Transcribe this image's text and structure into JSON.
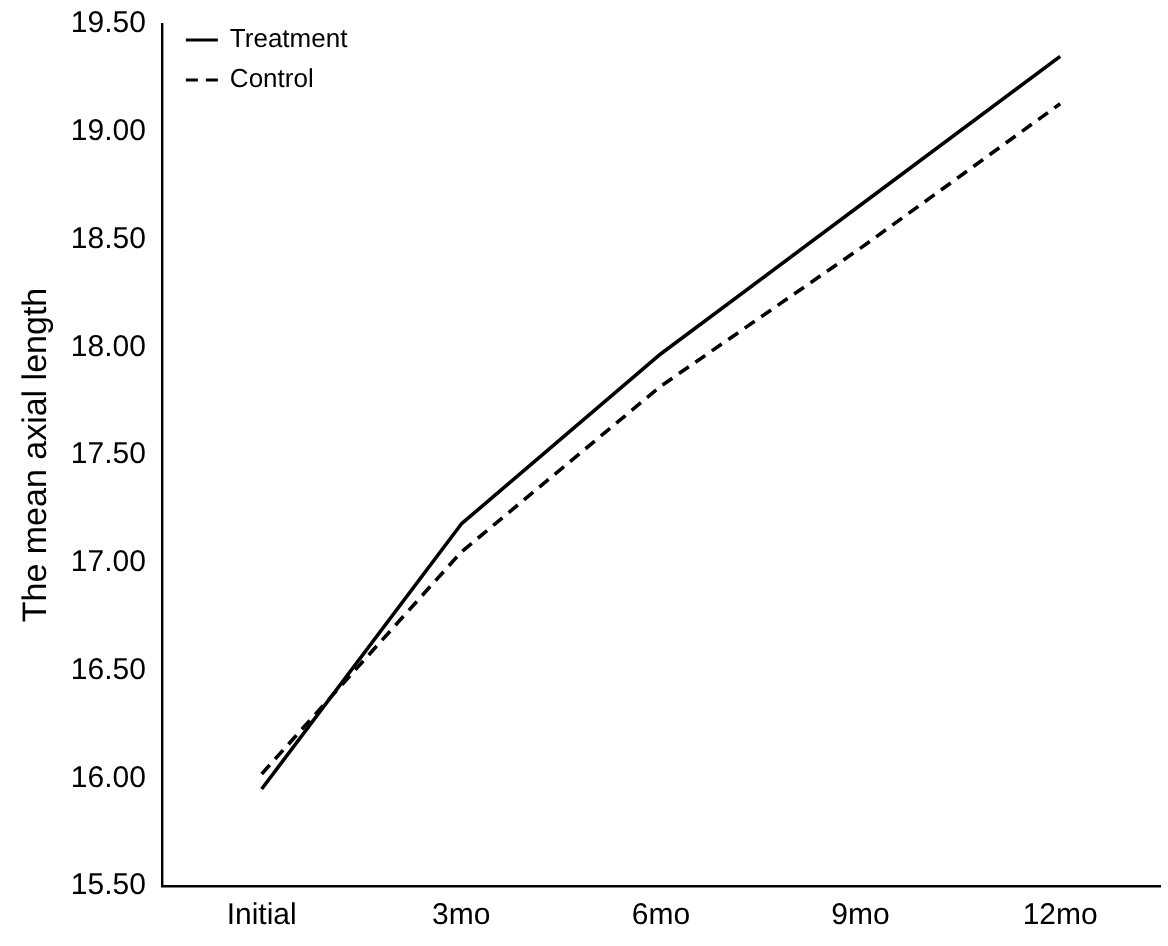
{
  "chart_data": {
    "type": "line",
    "ylabel": "The mean axial length",
    "categories": [
      "Initial",
      "3mo",
      "6mo",
      "9mo",
      "12mo"
    ],
    "series": [
      {
        "name": "Treatment",
        "color": "#000000",
        "line_style": "solid",
        "values": [
          15.95,
          17.18,
          17.97,
          18.66,
          19.35
        ]
      },
      {
        "name": "Control",
        "color": "#000000",
        "line_style": "dashed",
        "values": [
          16.02,
          17.05,
          17.82,
          18.46,
          19.13
        ]
      }
    ],
    "ylim": [
      15.5,
      19.5
    ],
    "yticks": [
      {
        "value": 15.5,
        "label": "15.50"
      },
      {
        "value": 16,
        "label": "16.00"
      },
      {
        "value": 16.5,
        "label": "16.50"
      },
      {
        "value": 17,
        "label": "17.00"
      },
      {
        "value": 17.5,
        "label": "17.50"
      },
      {
        "value": 18,
        "label": "18.00"
      },
      {
        "value": 18.5,
        "label": "18.50"
      },
      {
        "value": 19,
        "label": "19.00"
      },
      {
        "value": 19.5,
        "label": "19.50"
      }
    ],
    "grid": false,
    "legend": "top left",
    "marker": "none"
  }
}
